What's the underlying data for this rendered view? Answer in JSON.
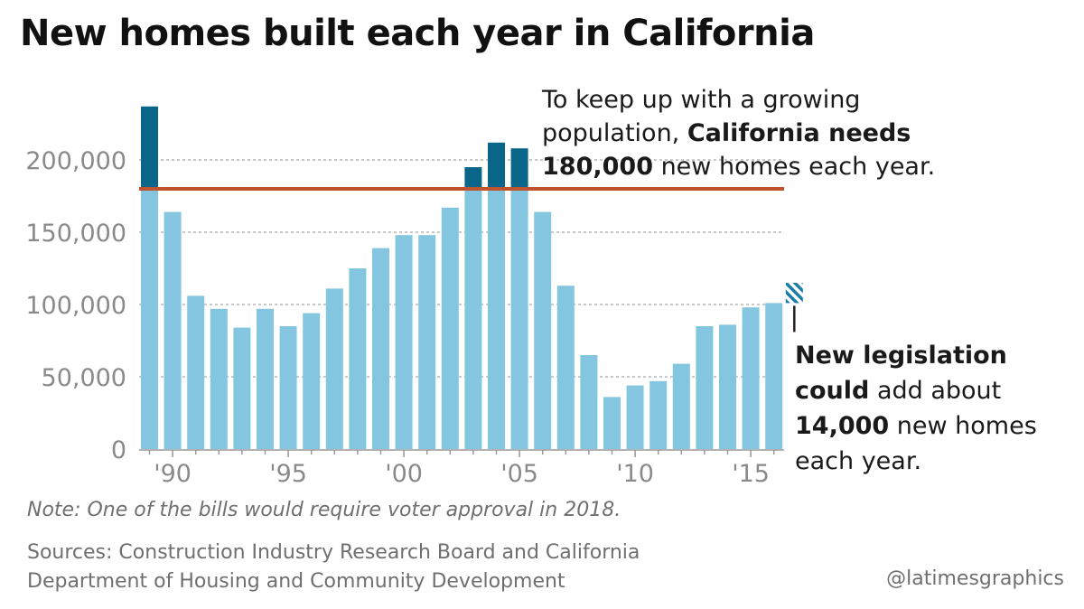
{
  "title": "New homes built each year in California",
  "annotation_top": {
    "line1": "To keep up with a growing",
    "line2_plain": "population, ",
    "line2_bold": "California needs",
    "line3_bold": "180,000",
    "line3_plain": " new homes each year."
  },
  "annotation_bottom": {
    "line1_bold": "New legislation",
    "line2_bold": "could",
    "line2_plain": " add about",
    "line3_bold": "14,000",
    "line3_plain": " new homes",
    "line4": "each year."
  },
  "note": "Note: One of the bills would require voter approval in 2018.",
  "sources_line1": "Sources: Construction Industry Research Board and California",
  "sources_line2": "Department of Housing and Community Development",
  "credit": "@latimesgraphics",
  "colors": {
    "bar_light": "#84c6e0",
    "bar_dark": "#0a6689",
    "target_line": "#c0532f",
    "grid": "#b5b5b5",
    "axis_text": "#8a8a8a",
    "hatch": "#1a7ea8"
  },
  "chart_data": {
    "type": "bar",
    "x": [
      1989,
      1990,
      1991,
      1992,
      1993,
      1994,
      1995,
      1996,
      1997,
      1998,
      1999,
      2000,
      2001,
      2002,
      2003,
      2004,
      2005,
      2006,
      2007,
      2008,
      2009,
      2010,
      2011,
      2012,
      2013,
      2014,
      2015,
      2016
    ],
    "values": [
      237000,
      164000,
      106000,
      97000,
      84000,
      97000,
      85000,
      94000,
      111000,
      125000,
      139000,
      148000,
      148000,
      167000,
      195000,
      212000,
      208000,
      164000,
      113000,
      65000,
      36000,
      44000,
      47000,
      59000,
      85000,
      86000,
      98000,
      101000
    ],
    "xticks": [
      1990,
      1995,
      2000,
      2005,
      2010,
      2015
    ],
    "xtick_labels": [
      "'90",
      "'95",
      "'00",
      "'05",
      "'10",
      "'15"
    ],
    "yticks": [
      0,
      50000,
      100000,
      150000,
      200000
    ],
    "ytick_labels": [
      "0",
      "50,000",
      "100,000",
      "150,000",
      "200,000"
    ],
    "ylim": [
      0,
      240000
    ],
    "target_line": 180000,
    "additional_estimate": 14000,
    "grid": true
  }
}
